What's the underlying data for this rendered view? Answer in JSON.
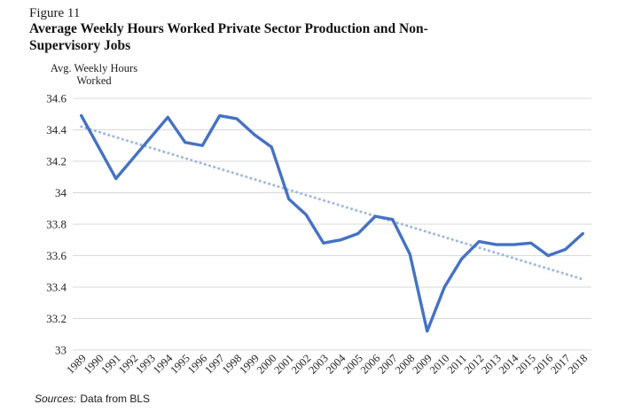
{
  "figure": {
    "label": "Figure 11",
    "title_line1": "Average Weekly Hours Worked Private Sector Production and Non-",
    "title_line2": "Supervisory Jobs",
    "source_prefix": "Sources:",
    "source_text": "Data from BLS"
  },
  "y_axis_title": {
    "line1": "Avg. Weekly Hours",
    "line2": "Worked"
  },
  "chart_data": {
    "type": "line",
    "title": "Average Weekly Hours Worked Private Sector Production and Non-Supervisory Jobs",
    "xlabel": "",
    "ylabel": "Avg. Weekly Hours Worked",
    "ylim": [
      33,
      34.6
    ],
    "ytick_values": [
      33,
      33.2,
      33.4,
      33.6,
      33.8,
      34,
      34.2,
      34.4,
      34.6
    ],
    "ytick_labels": [
      "33",
      "33.2",
      "33.4",
      "33.6",
      "33.8",
      "34",
      "34.2",
      "34.4",
      "34.6"
    ],
    "grid": "horizontal",
    "legend": "none",
    "categories": [
      "1989",
      "1990",
      "1991",
      "1992",
      "1993",
      "1994",
      "1995",
      "1996",
      "1997",
      "1998",
      "1999",
      "2000",
      "2001",
      "2002",
      "2003",
      "2004",
      "2005",
      "2006",
      "2007",
      "2008",
      "2009",
      "2010",
      "2011",
      "2012",
      "2013",
      "2014",
      "2015",
      "2016",
      "2017",
      "2018"
    ],
    "series": [
      {
        "name": "Avg. weekly hours worked",
        "color": "#4472C4",
        "values": [
          34.49,
          34.29,
          34.09,
          34.22,
          34.35,
          34.48,
          34.32,
          34.3,
          34.49,
          34.47,
          34.37,
          34.29,
          33.96,
          33.86,
          33.68,
          33.7,
          33.74,
          33.85,
          33.83,
          33.61,
          33.12,
          33.4,
          33.58,
          33.69,
          33.67,
          33.67,
          33.68,
          33.6,
          33.64,
          33.74
        ]
      },
      {
        "name": "Linear trend",
        "type": "trend",
        "style": "dotted",
        "color": "#9DB8E2",
        "start": 34.42,
        "end": 33.45
      }
    ],
    "colors": {
      "gridline": "#D9D9D9",
      "tick_text": "#1f1f1f"
    },
    "source": "Sources: Data from BLS"
  }
}
